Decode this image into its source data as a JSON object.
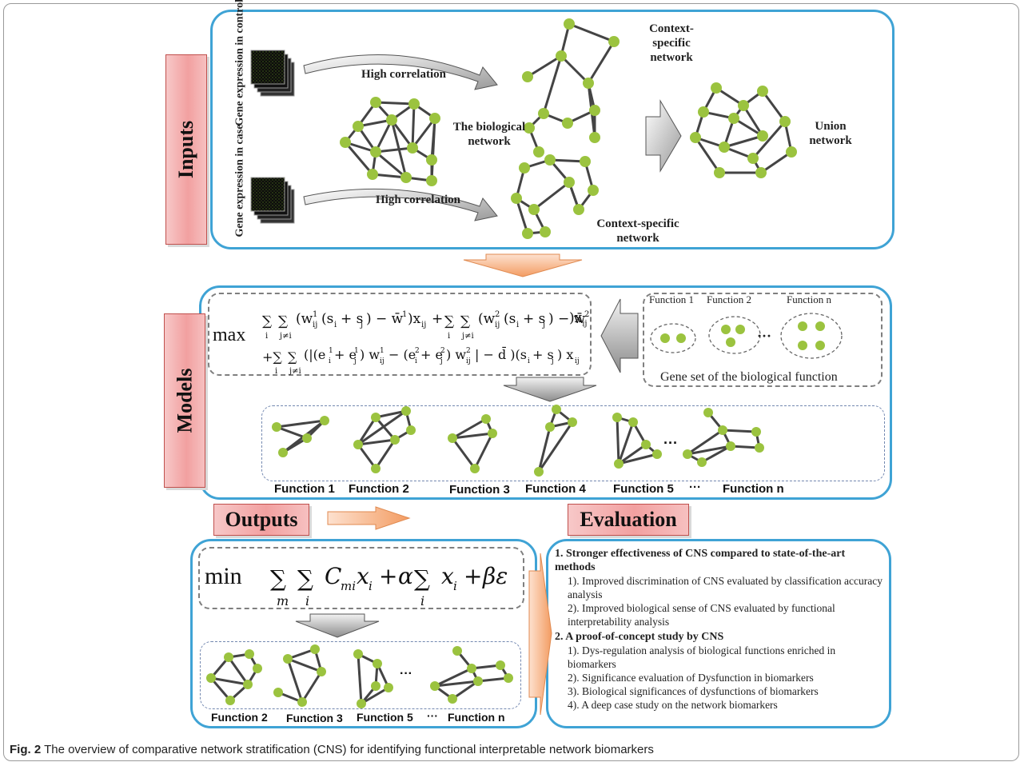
{
  "tags": {
    "inputs": "Inputs",
    "models": "Models",
    "outputs": "Outputs",
    "evaluation": "Evaluation"
  },
  "inputs": {
    "expr_control": "Gene expression in control",
    "expr_case": "Gene expression in case",
    "high_corr_top": "High correlation",
    "high_corr_bottom": "High correlation",
    "bio_network": "The biological network",
    "ctx_top": "Context-specific network",
    "ctx_bottom": "Context-specific network",
    "union": "Union network"
  },
  "models": {
    "max": "max",
    "line1": "∑∑(w¹ᵢⱼ(sᵢ + sⱼ) − w̄¹)xᵢⱼ + ∑∑(w²ᵢⱼ(sᵢ + sⱼ) − w̄²)xᵢⱼ",
    "line2": "+∑∑(|(e¹ᵢ + e¹ⱼ)w¹ᵢⱼ − (e²ᵢ + e²ⱼ)w²ᵢⱼ| − d̄)(sᵢ + sⱼ)xᵢⱼ",
    "sub_i": "i",
    "sub_jneqi": "j≠i",
    "fn1": "Function 1",
    "fn2": "Function 2",
    "fnn": "Function n",
    "ellipsis": "···",
    "gene_set": "Gene set of the biological function",
    "functions": [
      "Function 1",
      "Function 2",
      "Function 3",
      "Function 4",
      "Function 5",
      "Function n"
    ],
    "dots": "···"
  },
  "outputs": {
    "min": "min",
    "formula": "∑∑Cₘᵢxᵢ + α∑xᵢ + βε",
    "sub_m": "m",
    "sub_i": "i",
    "functions": [
      "Function 2",
      "Function 3",
      "Function 5",
      "Function n"
    ],
    "dots": "···"
  },
  "evaluation": {
    "h1": "1. Stronger effectiveness of CNS compared to state-of-the-art methods",
    "h1_items": [
      "1). Improved discrimination of CNS evaluated by classification accuracy analysis",
      "2). Improved biological sense of CNS evaluated by functional interpretability analysis"
    ],
    "h2": "2. A proof-of-concept study by CNS",
    "h2_items": [
      "1). Dys-regulation analysis of biological functions enriched in biomarkers",
      "2). Significance evaluation of Dysfunction in biomarkers",
      "3). Biological significances of dysfunctions of biomarkers",
      "4). A deep case study on the network biomarkers"
    ]
  },
  "caption": {
    "label": "Fig. 2",
    "text": " The overview of comparative network stratification (CNS) for identifying functional interpretable network biomarkers"
  },
  "colors": {
    "panel_border": "#3fa3d5",
    "node": "#9bc33f",
    "edge": "#444444",
    "tag_fill": "#f2a0a0",
    "arrow_orange": "#f6b48a"
  }
}
